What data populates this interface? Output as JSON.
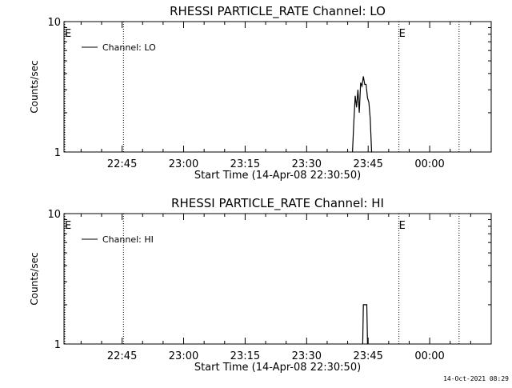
{
  "colors": {
    "background": "#ffffff",
    "foreground": "#000000"
  },
  "footer_timestamp": "14-Oct-2021 08:29",
  "chart_data": [
    {
      "type": "line",
      "title": "RHESSI PARTICLE_RATE Channel: LO",
      "xlabel": "Start Time (14-Apr-08 22:30:50)",
      "ylabel": "Counts/sec",
      "y_scale": "log",
      "ylim": [
        1,
        10
      ],
      "y_ticks": [
        {
          "value": 1,
          "label": "1"
        },
        {
          "value": 10,
          "label": "10"
        }
      ],
      "xlim": [
        "22:30:50",
        "00:15:00"
      ],
      "x_ticks": [
        "22:45",
        "23:00",
        "23:15",
        "23:30",
        "23:45",
        "00:00"
      ],
      "legend": {
        "label": "Channel: LO",
        "placement": "top-left"
      },
      "event_markers": [
        {
          "time": "22:30:50",
          "label": "E"
        },
        {
          "time": "22:45:20",
          "label": ""
        },
        {
          "time": "23:52:30",
          "label": "E"
        },
        {
          "time": "00:07:10",
          "label": ""
        }
      ],
      "series": [
        {
          "x": [
            "23:41:10",
            "23:41:30",
            "23:41:50",
            "23:42:10",
            "23:42:30",
            "23:42:50",
            "23:43:10",
            "23:43:30",
            "23:43:50",
            "23:44:10",
            "23:44:30",
            "23:44:50",
            "23:45:10",
            "23:45:30",
            "23:45:50",
            "23:46:00"
          ],
          "y": [
            1,
            1.7,
            2.7,
            2.2,
            3.0,
            2.0,
            3.4,
            3.2,
            3.8,
            3.3,
            3.3,
            2.6,
            2.4,
            1.8,
            1.0,
            1.0
          ]
        }
      ]
    },
    {
      "type": "line",
      "title": "RHESSI PARTICLE_RATE Channel: HI",
      "xlabel": "Start Time (14-Apr-08 22:30:50)",
      "ylabel": "Counts/sec",
      "y_scale": "log",
      "ylim": [
        1,
        10
      ],
      "y_ticks": [
        {
          "value": 1,
          "label": "1"
        },
        {
          "value": 10,
          "label": "10"
        }
      ],
      "xlim": [
        "22:30:50",
        "00:15:00"
      ],
      "x_ticks": [
        "22:45",
        "23:00",
        "23:15",
        "23:30",
        "23:45",
        "00:00"
      ],
      "legend": {
        "label": "Channel: HI",
        "placement": "top-left"
      },
      "event_markers": [
        {
          "time": "22:30:50",
          "label": "E"
        },
        {
          "time": "22:45:20",
          "label": ""
        },
        {
          "time": "23:52:30",
          "label": "E"
        },
        {
          "time": "00:07:10",
          "label": ""
        }
      ],
      "series": [
        {
          "x": [
            "23:43:40",
            "23:43:50",
            "23:44:10",
            "23:44:40",
            "23:44:50"
          ],
          "y": [
            1,
            2.0,
            2.0,
            2.0,
            1
          ]
        }
      ]
    }
  ]
}
